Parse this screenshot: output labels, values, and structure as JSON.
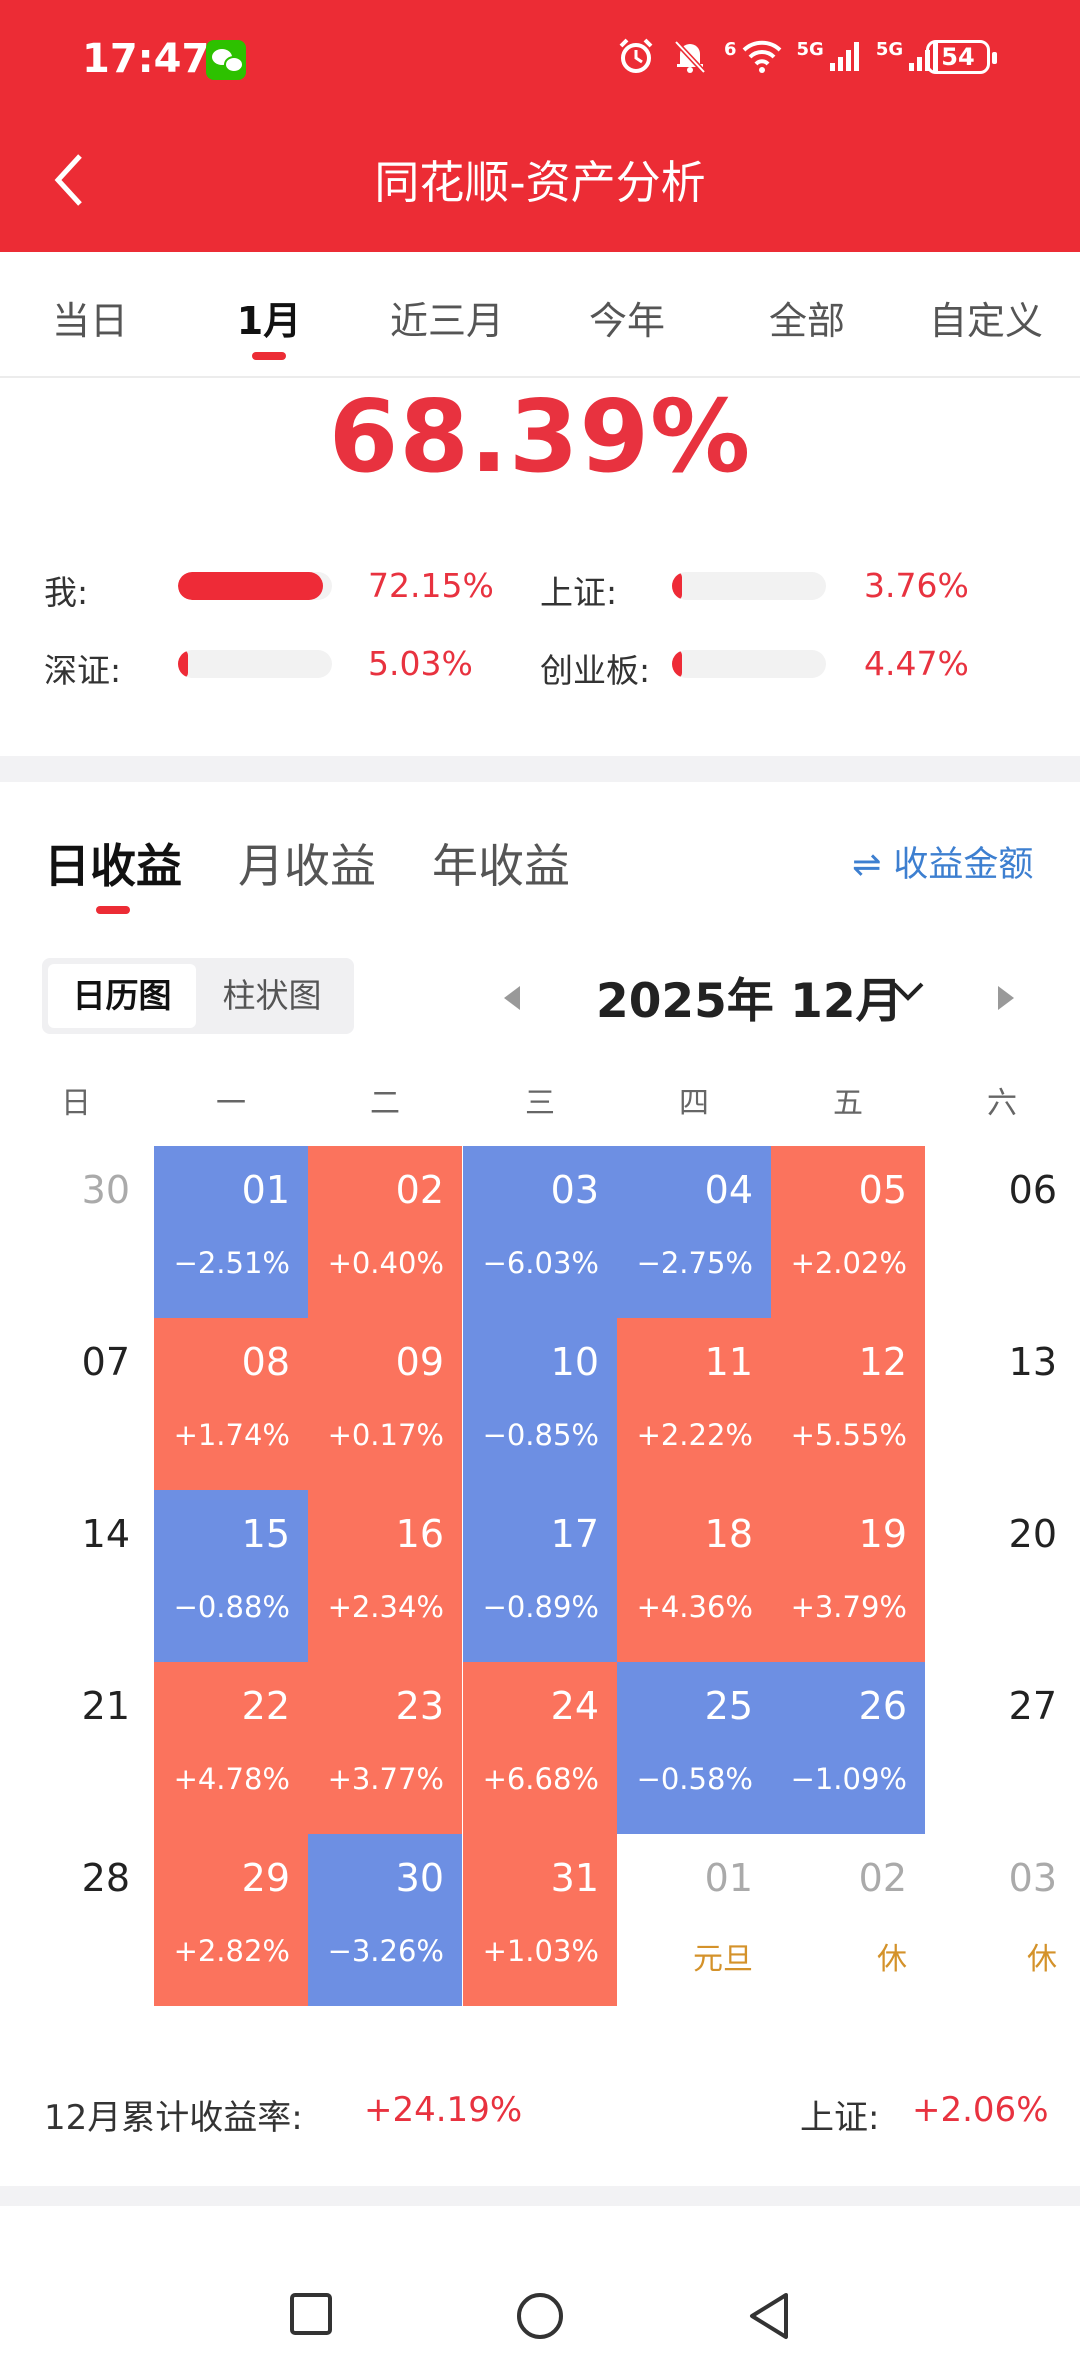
{
  "status": {
    "time": "17:47",
    "battery": "54",
    "signal1": "5G",
    "signal2": "5G",
    "wifi_label": "6"
  },
  "header": {
    "title": "同花顺-资产分析"
  },
  "tabs": [
    {
      "label": "当日"
    },
    {
      "label": "1月"
    },
    {
      "label": "近三月"
    },
    {
      "label": "今年"
    },
    {
      "label": "全部"
    },
    {
      "label": "自定义"
    }
  ],
  "summary": {
    "total": "68.39%",
    "comparisons": [
      {
        "label": "我:",
        "value": "72.15%",
        "fill": 0.94
      },
      {
        "label": "上证:",
        "value": "3.76%",
        "fill": 0.05
      },
      {
        "label": "深证:",
        "value": "5.03%",
        "fill": 0.05
      },
      {
        "label": "创业板:",
        "value": "4.47%",
        "fill": 0.05
      }
    ]
  },
  "returns_tabs": [
    {
      "label": "日收益"
    },
    {
      "label": "月收益"
    },
    {
      "label": "年收益"
    }
  ],
  "toggle_amount": "收益金额",
  "toggle_icon": "swap-icon",
  "view_switch": {
    "calendar": "日历图",
    "bar": "柱状图"
  },
  "month_label": "2025年 12月",
  "weekdays": [
    "日",
    "一",
    "二",
    "三",
    "四",
    "五",
    "六"
  ],
  "calendar": [
    [
      {
        "d": "30",
        "t": "grey"
      },
      {
        "d": "01",
        "p": "−2.51%",
        "t": "blue"
      },
      {
        "d": "02",
        "p": "+0.40%",
        "t": "red"
      },
      {
        "d": "03",
        "p": "−6.03%",
        "t": "blue"
      },
      {
        "d": "04",
        "p": "−2.75%",
        "t": "blue"
      },
      {
        "d": "05",
        "p": "+2.02%",
        "t": "red"
      },
      {
        "d": "06",
        "t": "plain"
      }
    ],
    [
      {
        "d": "07",
        "t": "plain"
      },
      {
        "d": "08",
        "p": "+1.74%",
        "t": "red"
      },
      {
        "d": "09",
        "p": "+0.17%",
        "t": "red"
      },
      {
        "d": "10",
        "p": "−0.85%",
        "t": "blue"
      },
      {
        "d": "11",
        "p": "+2.22%",
        "t": "red"
      },
      {
        "d": "12",
        "p": "+5.55%",
        "t": "red"
      },
      {
        "d": "13",
        "t": "plain"
      }
    ],
    [
      {
        "d": "14",
        "t": "plain"
      },
      {
        "d": "15",
        "p": "−0.88%",
        "t": "blue"
      },
      {
        "d": "16",
        "p": "+2.34%",
        "t": "red"
      },
      {
        "d": "17",
        "p": "−0.89%",
        "t": "blue"
      },
      {
        "d": "18",
        "p": "+4.36%",
        "t": "red"
      },
      {
        "d": "19",
        "p": "+3.79%",
        "t": "red"
      },
      {
        "d": "20",
        "t": "plain"
      }
    ],
    [
      {
        "d": "21",
        "t": "plain"
      },
      {
        "d": "22",
        "p": "+4.78%",
        "t": "red"
      },
      {
        "d": "23",
        "p": "+3.77%",
        "t": "red"
      },
      {
        "d": "24",
        "p": "+6.68%",
        "t": "red"
      },
      {
        "d": "25",
        "p": "−0.58%",
        "t": "blue"
      },
      {
        "d": "26",
        "p": "−1.09%",
        "t": "blue"
      },
      {
        "d": "27",
        "t": "plain"
      }
    ],
    [
      {
        "d": "28",
        "t": "plain"
      },
      {
        "d": "29",
        "p": "+2.82%",
        "t": "red"
      },
      {
        "d": "30",
        "p": "−3.26%",
        "t": "blue"
      },
      {
        "d": "31",
        "p": "+1.03%",
        "t": "red"
      },
      {
        "d": "01",
        "h": "元旦",
        "t": "grey"
      },
      {
        "d": "02",
        "h": "休",
        "t": "grey"
      },
      {
        "d": "03",
        "h": "休",
        "t": "grey"
      }
    ]
  ],
  "cumulative": {
    "label": "12月累计收益率:",
    "value": "+24.19%",
    "sh_label": "上证:",
    "sh_value": "+2.06%"
  },
  "colors": {
    "accent": "#ec2c35",
    "gain": "#fb735d",
    "loss": "#6d8fe3",
    "link": "#3d7fd0"
  }
}
